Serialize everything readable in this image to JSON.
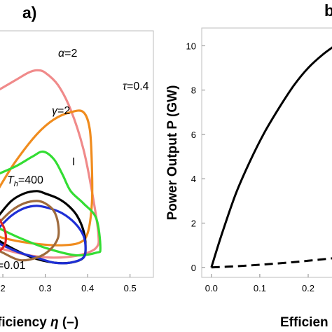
{
  "chart_data": [
    {
      "type": "line",
      "panel_label": "a)",
      "xlabel": "ficiency η (–)",
      "ylabel": "",
      "xlim": [
        0.19,
        0.555
      ],
      "ylim": [
        0,
        1
      ],
      "x_ticks": [
        "2",
        "0.3",
        "0.4",
        "0.5"
      ],
      "x_tick_values": [
        0.2,
        0.3,
        0.4,
        0.5
      ],
      "grid": false,
      "annotations": [
        "α=2",
        "τ=0.4",
        "γ=2",
        "I",
        "=400",
        "=0.01"
      ],
      "annotation_symbol": "T",
      "annotation_subscript": "h",
      "series": [
        {
          "color": "#f08a8a",
          "x": [
            0.19,
            0.23,
            0.26,
            0.28,
            0.3,
            0.33,
            0.36,
            0.39,
            0.41,
            0.425,
            0.42,
            0.38,
            0.32,
            0.26,
            0.21,
            0.19
          ],
          "y": [
            0.76,
            0.8,
            0.83,
            0.84,
            0.83,
            0.78,
            0.68,
            0.52,
            0.35,
            0.18,
            0.12,
            0.09,
            0.08,
            0.09,
            0.11,
            0.12
          ]
        },
        {
          "color": "#f08c1e",
          "x": [
            0.19,
            0.23,
            0.28,
            0.32,
            0.36,
            0.39,
            0.405,
            0.41,
            0.41,
            0.4,
            0.38,
            0.33,
            0.26,
            0.2,
            0.19
          ],
          "y": [
            0.36,
            0.47,
            0.58,
            0.64,
            0.67,
            0.67,
            0.6,
            0.45,
            0.3,
            0.18,
            0.14,
            0.13,
            0.14,
            0.16,
            0.17
          ]
        },
        {
          "color": "#33dd33",
          "x": [
            0.19,
            0.23,
            0.27,
            0.295,
            0.32,
            0.34,
            0.36,
            0.39,
            0.42,
            0.43,
            0.42,
            0.37,
            0.3,
            0.24,
            0.19
          ],
          "y": [
            0.42,
            0.45,
            0.49,
            0.51,
            0.48,
            0.42,
            0.35,
            0.3,
            0.24,
            0.12,
            0.1,
            0.09,
            0.12,
            0.16,
            0.2
          ]
        },
        {
          "color": "#000000",
          "x": [
            0.19,
            0.22,
            0.25,
            0.28,
            0.3,
            0.33,
            0.355,
            0.375,
            0.39,
            0.395,
            0.39,
            0.36,
            0.32,
            0.27,
            0.22,
            0.19
          ],
          "y": [
            0.25,
            0.31,
            0.34,
            0.35,
            0.34,
            0.32,
            0.29,
            0.25,
            0.19,
            0.13,
            0.08,
            0.06,
            0.06,
            0.08,
            0.12,
            0.15
          ]
        },
        {
          "color": "#1e2fd6",
          "x": [
            0.19,
            0.22,
            0.25,
            0.28,
            0.31,
            0.34,
            0.37,
            0.39,
            0.395,
            0.39,
            0.36,
            0.32,
            0.28,
            0.24,
            0.2,
            0.19
          ],
          "y": [
            0.2,
            0.25,
            0.28,
            0.29,
            0.28,
            0.26,
            0.22,
            0.17,
            0.12,
            0.08,
            0.06,
            0.06,
            0.08,
            0.1,
            0.13,
            0.14
          ]
        },
        {
          "color": "#9e6a3c",
          "x": [
            0.19,
            0.22,
            0.25,
            0.28,
            0.3,
            0.32,
            0.33,
            0.33,
            0.31,
            0.28,
            0.24,
            0.2,
            0.19
          ],
          "y": [
            0.22,
            0.27,
            0.3,
            0.31,
            0.3,
            0.27,
            0.22,
            0.16,
            0.11,
            0.08,
            0.07,
            0.1,
            0.11
          ]
        },
        {
          "color": "#e02424",
          "x": [
            0.19,
            0.197,
            0.203,
            0.207,
            0.206,
            0.2,
            0.193,
            0.19
          ],
          "y": [
            0.24,
            0.22,
            0.2,
            0.17,
            0.14,
            0.12,
            0.11,
            0.115
          ]
        }
      ]
    },
    {
      "type": "line",
      "panel_label": "b",
      "xlabel": "Efficien",
      "ylabel": "Power Output P (GW)",
      "xlim": [
        -0.02,
        0.255
      ],
      "ylim": [
        -0.45,
        10.8
      ],
      "x_ticks": [
        "0.0",
        "0.1",
        "0.2"
      ],
      "x_tick_values": [
        0.0,
        0.1,
        0.2
      ],
      "y_ticks": [
        "0",
        "2",
        "4",
        "6",
        "8",
        "10"
      ],
      "y_tick_values": [
        0,
        2,
        4,
        6,
        8,
        10
      ],
      "grid": false,
      "series": [
        {
          "style": "solid",
          "color": "#000000",
          "x": [
            0.0,
            0.02,
            0.05,
            0.08,
            0.11,
            0.14,
            0.17,
            0.2,
            0.23,
            0.255
          ],
          "y": [
            0.0,
            1.4,
            3.3,
            4.8,
            6.1,
            7.2,
            8.2,
            9.0,
            9.6,
            10.0
          ]
        },
        {
          "style": "dashed",
          "color": "#000000",
          "x": [
            0.0,
            0.05,
            0.1,
            0.15,
            0.2,
            0.255
          ],
          "y": [
            0.0,
            0.05,
            0.12,
            0.2,
            0.3,
            0.42
          ]
        }
      ]
    }
  ]
}
